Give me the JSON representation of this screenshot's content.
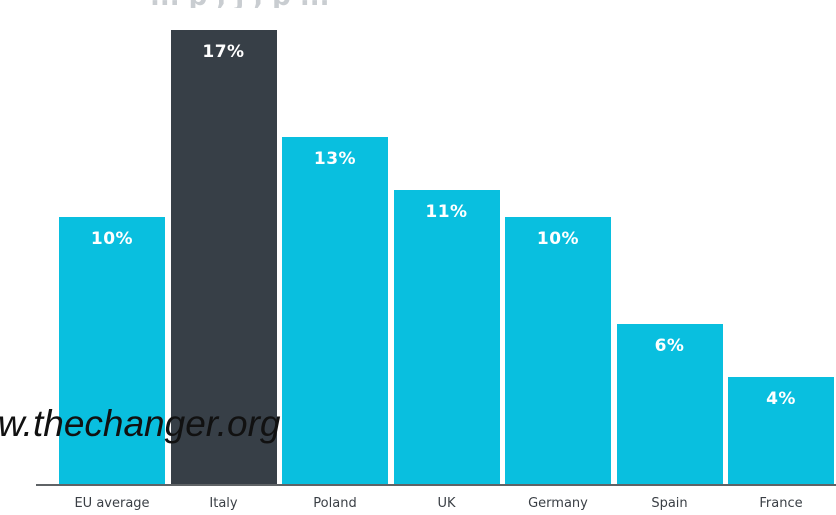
{
  "chart_data": {
    "type": "bar",
    "title": "",
    "xlabel": "",
    "ylabel": "",
    "ylim": [
      0,
      17.5
    ],
    "categories": [
      "EU average",
      "Italy",
      "Poland",
      "UK",
      "Germany",
      "Spain",
      "France"
    ],
    "values": [
      10,
      17,
      13,
      11,
      10,
      6,
      4
    ],
    "data_labels": [
      "10%",
      "17%",
      "13%",
      "11%",
      "10%",
      "6%",
      "4%"
    ],
    "highlight_index": 1,
    "colors": {
      "default": "#09bfdf",
      "highlight": "#373f47",
      "label": "#ffffff",
      "axis": "#5f6366"
    },
    "grid": false,
    "legend": "none"
  },
  "partial_title": "... p , j , p ...",
  "watermark": "w.thechanger.org"
}
